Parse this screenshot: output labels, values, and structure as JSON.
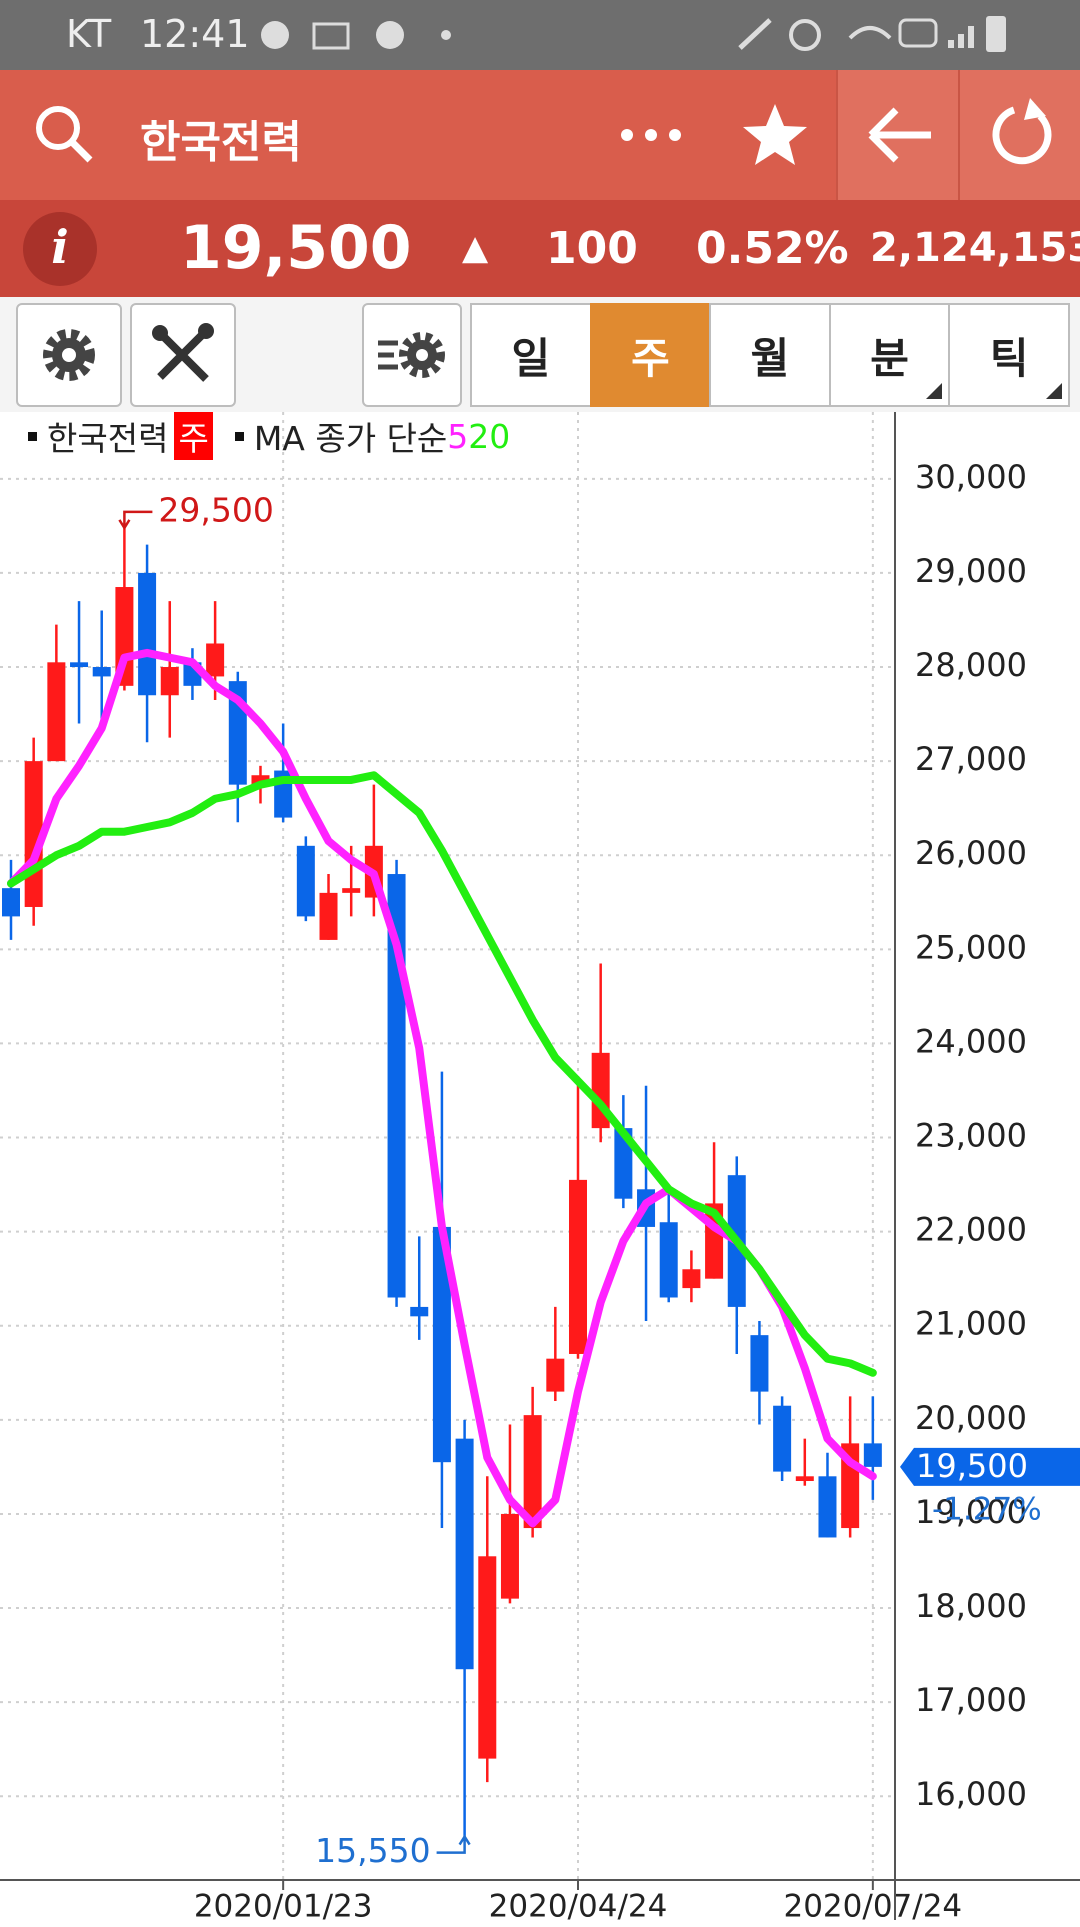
{
  "status_bar": {
    "carrier": "KT",
    "time": "12:41"
  },
  "header": {
    "title": "한국전력"
  },
  "quote": {
    "price": "19,500",
    "arrow": "▲",
    "change": "100",
    "change_pct": "0.52%",
    "volume": "2,124,153"
  },
  "toolbar": {
    "periods": [
      "일",
      "주",
      "월",
      "분",
      "틱"
    ],
    "selected": 1
  },
  "chart_data": {
    "type": "candlestick",
    "name": "한국전력",
    "period_badge": "주",
    "ma_label": "MA 종가 단순",
    "categories": [
      null,
      null,
      null,
      null,
      null,
      null,
      null,
      null,
      null,
      null,
      null,
      null,
      "2020/01/23",
      null,
      null,
      null,
      null,
      null,
      null,
      null,
      null,
      null,
      null,
      null,
      null,
      "2020/04/24",
      null,
      null,
      null,
      null,
      null,
      null,
      null,
      null,
      null,
      null,
      null,
      null,
      "2020/07/24"
    ],
    "open": [
      25650,
      25450,
      27000,
      28050,
      28000,
      27800,
      29000,
      27700,
      28050,
      27900,
      27850,
      26750,
      26900,
      26100,
      25100,
      25600,
      25550,
      25800,
      21200,
      22050,
      19800,
      16400,
      18100,
      18850,
      20300,
      20700,
      23100,
      23100,
      22450,
      22100,
      21400,
      21500,
      22600,
      20900,
      20150,
      19350,
      19400,
      18850,
      19750
    ],
    "high": [
      25950,
      27250,
      28450,
      28700,
      28600,
      29500,
      29300,
      28700,
      28200,
      28700,
      27950,
      26950,
      27400,
      26200,
      25800,
      26100,
      26750,
      25950,
      21950,
      23700,
      20000,
      19400,
      19950,
      20350,
      21200,
      23650,
      24850,
      23450,
      23550,
      22500,
      21800,
      22950,
      22800,
      21050,
      20250,
      19800,
      19650,
      20250,
      20250
    ],
    "low": [
      25100,
      25250,
      27000,
      27400,
      27400,
      27750,
      27200,
      27250,
      27650,
      27650,
      26350,
      26550,
      26350,
      25300,
      25100,
      25350,
      25350,
      21200,
      20850,
      18850,
      15550,
      16150,
      18050,
      18750,
      20200,
      20650,
      22950,
      22250,
      21050,
      21250,
      21250,
      21500,
      20700,
      19950,
      19350,
      19300,
      18750,
      18750,
      19150
    ],
    "close": [
      25350,
      27000,
      28050,
      28000,
      27900,
      28850,
      27700,
      28000,
      27800,
      28250,
      26750,
      26850,
      26400,
      25350,
      25600,
      25650,
      26100,
      21300,
      21100,
      19550,
      17350,
      18550,
      19000,
      20050,
      20650,
      22550,
      23900,
      22350,
      22050,
      21300,
      21600,
      22300,
      21200,
      20300,
      19450,
      19400,
      18750,
      19750,
      19500
    ],
    "up_color": "#ff1a1a",
    "down_color": "#0a66e8",
    "series": [
      {
        "name": "5",
        "color": "#ff22ff",
        "values": [
          25700,
          25950,
          26600,
          26950,
          27350,
          28100,
          28150,
          28100,
          28050,
          27800,
          27650,
          27400,
          27100,
          26600,
          26150,
          25950,
          25800,
          25050,
          23950,
          22050,
          20800,
          19600,
          19150,
          18900,
          19150,
          20300,
          21250,
          21900,
          22300,
          22450,
          22250,
          22050,
          21900,
          21600,
          21200,
          20550,
          19800,
          19550,
          19400
        ]
      },
      {
        "name": "20",
        "color": "#22ee11",
        "values": [
          25700,
          25850,
          26000,
          26100,
          26250,
          26250,
          26300,
          26350,
          26450,
          26600,
          26650,
          26750,
          26800,
          26800,
          26800,
          26800,
          26850,
          26650,
          26450,
          26050,
          25600,
          25150,
          24700,
          24250,
          23850,
          23600,
          23350,
          23050,
          22750,
          22450,
          22300,
          22200,
          21900,
          21600,
          21250,
          20900,
          20650,
          20600,
          20500
        ]
      }
    ],
    "ylim": [
      15110,
      30710
    ],
    "yticks": [
      {
        "value": 16000,
        "label": "16,000"
      },
      {
        "value": 17000,
        "label": "17,000"
      },
      {
        "value": 18000,
        "label": "18,000"
      },
      {
        "value": 19000,
        "label": "19,000"
      },
      {
        "value": 20000,
        "label": "20,000"
      },
      {
        "value": 21000,
        "label": "21,000"
      },
      {
        "value": 22000,
        "label": "22,000"
      },
      {
        "value": 23000,
        "label": "23,000"
      },
      {
        "value": 24000,
        "label": "24,000"
      },
      {
        "value": 25000,
        "label": "25,000"
      },
      {
        "value": 26000,
        "label": "26,000"
      },
      {
        "value": 27000,
        "label": "27,000"
      },
      {
        "value": 28000,
        "label": "28,000"
      },
      {
        "value": 29000,
        "label": "29,000"
      },
      {
        "value": 30000,
        "label": "30,000"
      }
    ],
    "high_label": {
      "value": 29500,
      "label": "29,500"
    },
    "low_label": {
      "value": 15550,
      "label": "15,550"
    },
    "last_label": {
      "value": 19500,
      "label": "19,500"
    },
    "last_change": "-1.27%",
    "grid": true
  }
}
